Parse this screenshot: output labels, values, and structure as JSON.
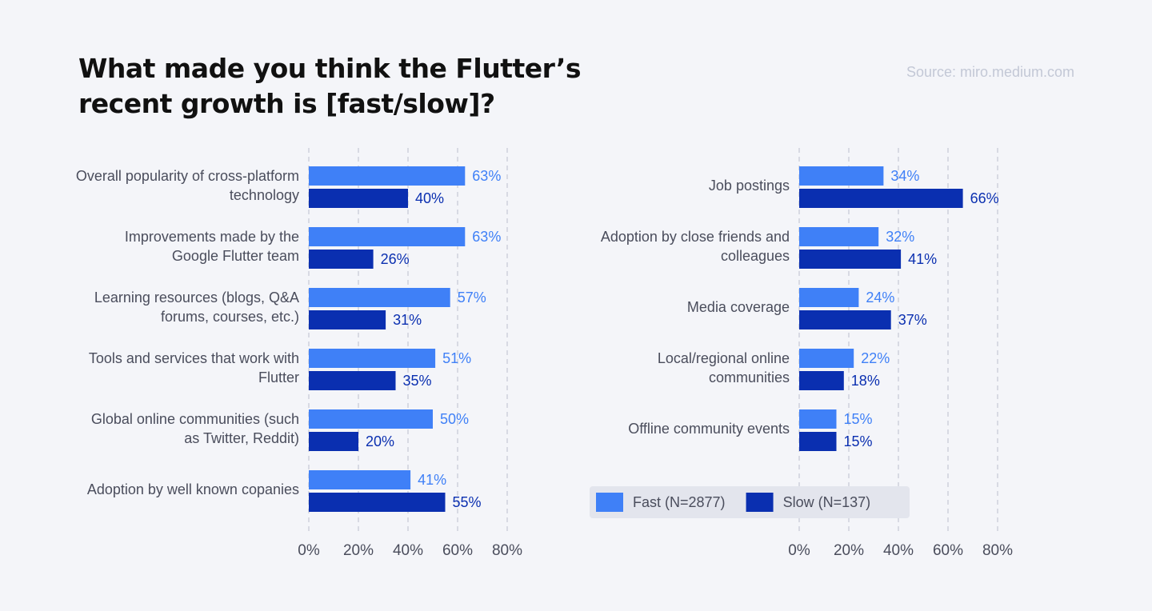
{
  "title": "What made you think the Flutter’s recent growth is [fast/slow]?",
  "source": "Source: miro.medium.com",
  "chart_data": [
    {
      "type": "bar",
      "orientation": "horizontal",
      "categories": [
        "Overall popularity of cross-platform technology",
        "Improvements made by the Google Flutter team",
        "Learning resources (blogs, Q&A forums, courses, etc.)",
        "Tools and services that work with Flutter",
        "Global online communities (such as Twitter, Reddit)",
        "Adoption by well known copanies"
      ],
      "series": [
        {
          "color": "#3f80f7",
          "values": [
            63,
            63,
            57,
            51,
            50,
            41
          ],
          "value_labels": [
            "63%",
            "63%",
            "57%",
            "51%",
            "50%",
            "41%"
          ]
        },
        {
          "color": "#0a2fb0",
          "values": [
            40,
            26,
            31,
            35,
            20,
            55
          ],
          "value_labels": [
            "40%",
            "26%",
            "31%",
            "35%",
            "20%",
            "55%"
          ]
        }
      ],
      "xlim": [
        0,
        80
      ],
      "xticks": [
        {
          "value": 0,
          "label": "0%"
        },
        {
          "value": 20,
          "label": "20%"
        },
        {
          "value": 40,
          "label": "40%"
        },
        {
          "value": 60,
          "label": "60%"
        },
        {
          "value": 80,
          "label": "80%"
        }
      ],
      "grid": true
    },
    {
      "type": "bar",
      "orientation": "horizontal",
      "categories": [
        "Job postings",
        "Adoption by close friends and colleagues",
        "Media coverage",
        "Local/regional online communities",
        "Offline community events"
      ],
      "series": [
        {
          "name": "Fast (N=2877)",
          "color": "#3f80f7",
          "values": [
            34,
            32,
            24,
            22,
            15
          ],
          "value_labels": [
            "34%",
            "32%",
            "24%",
            "22%",
            "15%"
          ]
        },
        {
          "name": "Slow (N=137)",
          "color": "#0a2fb0",
          "values": [
            66,
            41,
            37,
            18,
            15
          ],
          "value_labels": [
            "66%",
            "41%",
            "37%",
            "18%",
            "15%"
          ]
        }
      ],
      "xlim": [
        0,
        80
      ],
      "xticks": [
        {
          "value": 0,
          "label": "0%"
        },
        {
          "value": 20,
          "label": "20%"
        },
        {
          "value": 40,
          "label": "40%"
        },
        {
          "value": 60,
          "label": "60%"
        },
        {
          "value": 80,
          "label": "80%"
        }
      ],
      "grid": true,
      "legend": "bottom-right"
    }
  ]
}
